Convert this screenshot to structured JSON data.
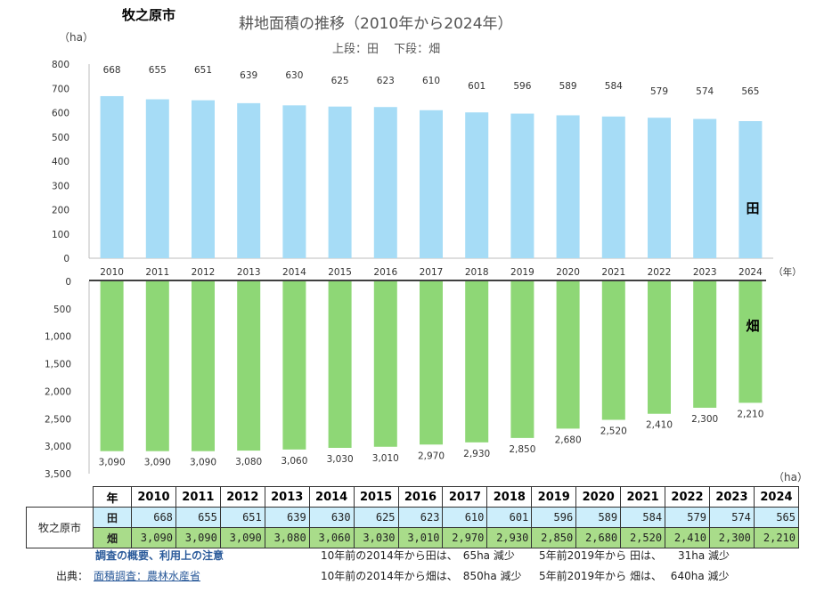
{
  "city": "牧之原市",
  "chart_data": {
    "type": "bar",
    "title": "耕地面積の推移（2010年から2024年）",
    "subtitle": "上段：田　 下段：畑",
    "y_unit": "（ha）",
    "x_unit": "（年）",
    "bottom_unit": "（ha）",
    "categories": [
      "2010",
      "2011",
      "2012",
      "2013",
      "2014",
      "2015",
      "2016",
      "2017",
      "2018",
      "2019",
      "2020",
      "2021",
      "2022",
      "2023",
      "2024"
    ],
    "series": [
      {
        "name": "田",
        "color": "#a6dcf6",
        "values": [
          668,
          655,
          651,
          639,
          630,
          625,
          623,
          610,
          601,
          596,
          589,
          584,
          579,
          574,
          565
        ],
        "labels": [
          "668",
          "655",
          "651",
          "639",
          "630",
          "625",
          "623",
          "610",
          "601",
          "596",
          "589",
          "584",
          "579",
          "574",
          "565"
        ],
        "ylim": [
          0,
          800
        ],
        "ticks": [
          "0",
          "100",
          "200",
          "300",
          "400",
          "500",
          "600",
          "700",
          "800"
        ]
      },
      {
        "name": "畑",
        "color": "#8ed776",
        "values": [
          3090,
          3090,
          3090,
          3080,
          3060,
          3030,
          3010,
          2970,
          2930,
          2850,
          2680,
          2520,
          2410,
          2300,
          2210
        ],
        "labels": [
          "3,090",
          "3,090",
          "3,090",
          "3,080",
          "3,060",
          "3,030",
          "3,010",
          "2,970",
          "2,930",
          "2,850",
          "2,680",
          "2,520",
          "2,410",
          "2,300",
          "2,210"
        ],
        "ylim": [
          0,
          3500
        ],
        "inverted": true,
        "ticks": [
          "0",
          "500",
          "1,000",
          "1,500",
          "2,000",
          "2,500",
          "3,000",
          "3,500"
        ]
      }
    ]
  },
  "table": {
    "year_header": "年",
    "years": [
      "2010",
      "2011",
      "2012",
      "2013",
      "2014",
      "2015",
      "2016",
      "2017",
      "2018",
      "2019",
      "2020",
      "2021",
      "2022",
      "2023",
      "2024"
    ],
    "city_label": "牧之原市",
    "rows": [
      {
        "label": "田",
        "values": [
          "668",
          "655",
          "651",
          "639",
          "630",
          "625",
          "623",
          "610",
          "601",
          "596",
          "589",
          "584",
          "579",
          "574",
          "565"
        ]
      },
      {
        "label": "畑",
        "values": [
          "3,090",
          "3,090",
          "3,090",
          "3,080",
          "3,060",
          "3,030",
          "3,010",
          "2,970",
          "2,930",
          "2,850",
          "2,680",
          "2,520",
          "2,410",
          "2,300",
          "2,210"
        ]
      }
    ]
  },
  "footer": {
    "note_link": "調査の概要、利用上の注意",
    "source_label": "出典：",
    "source_link": "面積調査：農林水産省",
    "note_1": "10年前の2014年から田は、　65ha 減少",
    "note_2": "10年前の2014年から畑は、　850ha 減少",
    "note_3": "5年前2019年から 田は、　　31ha 減少",
    "note_4": "5年前2019年から 畑は、　 640ha 減少"
  }
}
